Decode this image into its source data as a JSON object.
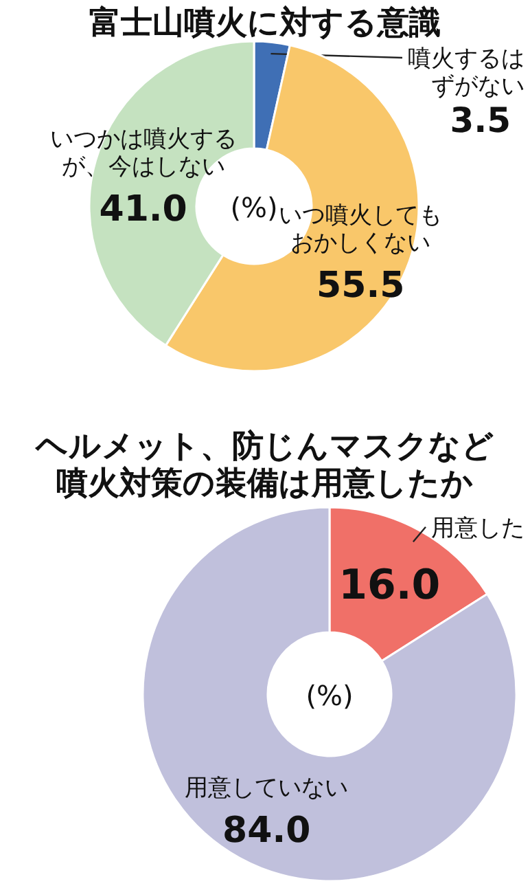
{
  "chart_data": [
    {
      "type": "donut",
      "title": "富士山噴火に対する意識",
      "categories": [
        "噴火するはずがない",
        "いつ噴火してもおかしくない",
        "いつかは噴火するが、今はしない"
      ],
      "values": [
        3.5,
        55.5,
        41.0
      ],
      "value_labels": [
        "3.5",
        "55.5",
        "41.0"
      ],
      "colors": [
        "#3f6fb5",
        "#f9c76a",
        "#c5e2c0"
      ],
      "annotations": [
        "(%)"
      ]
    },
    {
      "type": "donut",
      "title": "ヘルメット、防じんマスクなど噴火対策の装備は用意したか",
      "categories": [
        "用意した",
        "用意していない"
      ],
      "values": [
        16.0,
        84.0
      ],
      "value_labels": [
        "16.0",
        "84.0"
      ],
      "colors": [
        "#f07068",
        "#c0c0dc"
      ],
      "annotations": [
        "(%)"
      ]
    }
  ]
}
